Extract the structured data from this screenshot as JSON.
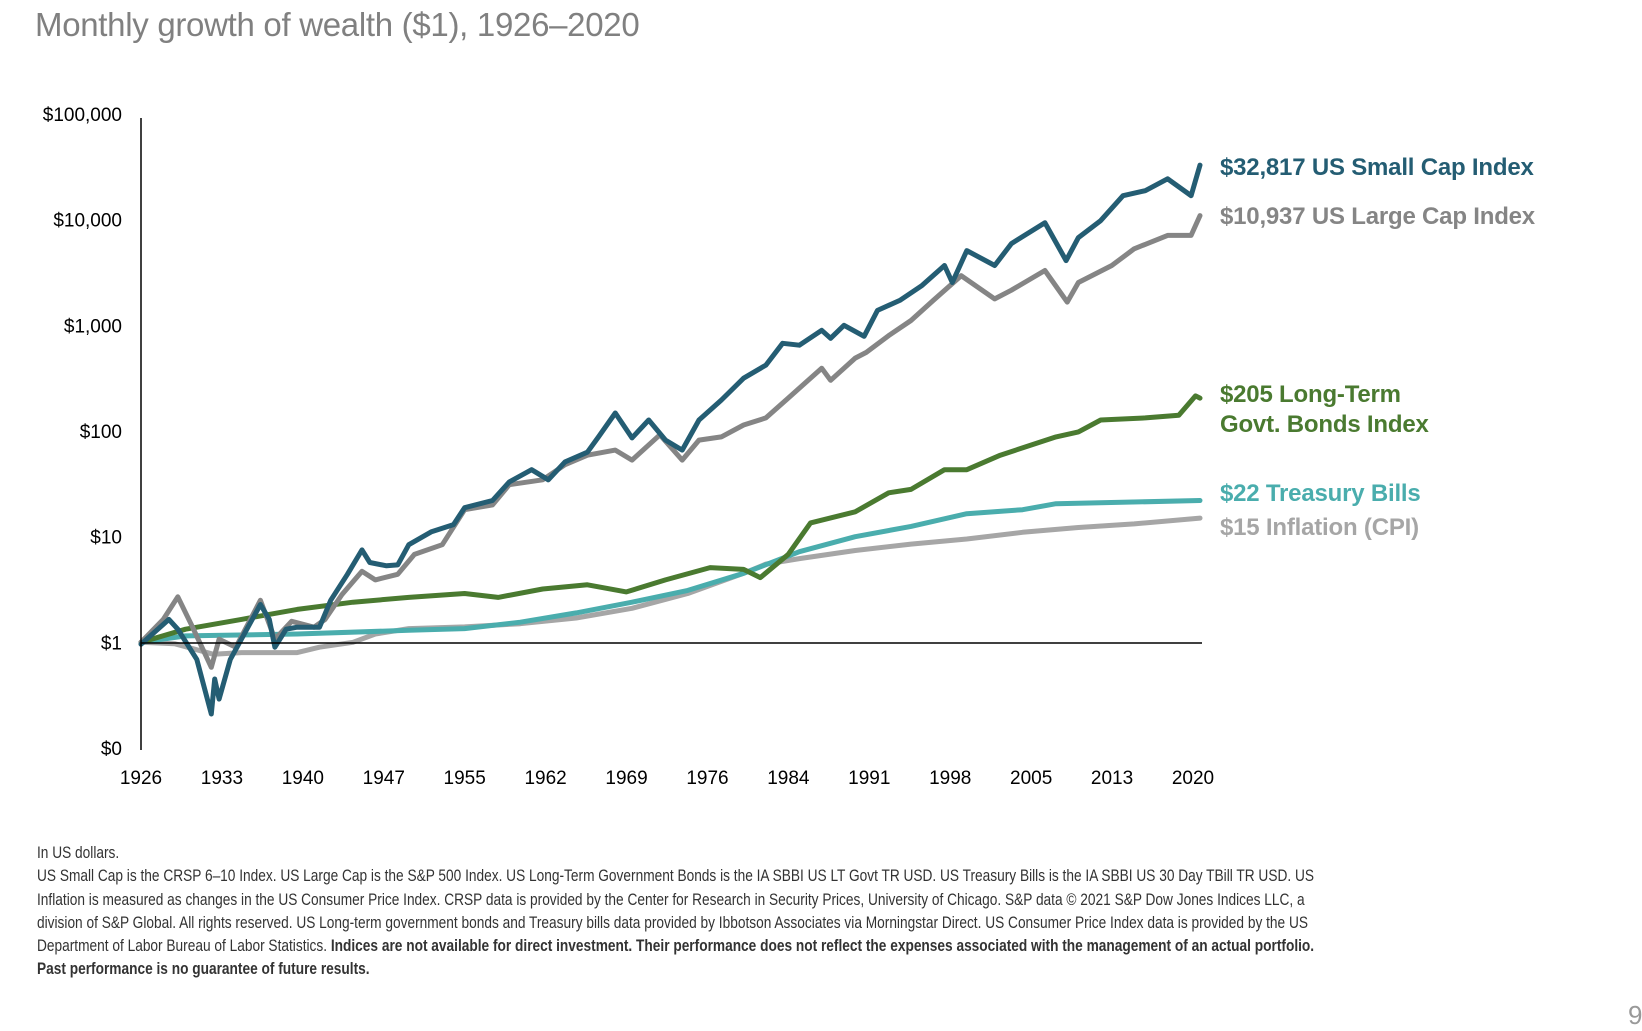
{
  "title": "Monthly growth of wealth ($1), 1926–2020",
  "chart_data": {
    "type": "line",
    "title": "Monthly growth of wealth ($1), 1926–2020",
    "xlabel": "",
    "ylabel": "",
    "y_scale": "log",
    "ylim": [
      0.1,
      100000
    ],
    "xlim": [
      1926,
      2020.9
    ],
    "y_ticks": [
      {
        "value": 0.1,
        "label": "$0"
      },
      {
        "value": 1,
        "label": "$1"
      },
      {
        "value": 10,
        "label": "$10"
      },
      {
        "value": 100,
        "label": "$100"
      },
      {
        "value": 1000,
        "label": "$1,000"
      },
      {
        "value": 10000,
        "label": "$10,000"
      },
      {
        "value": 100000,
        "label": "$100,000"
      }
    ],
    "x_ticks": [
      "1926",
      "1933",
      "1940",
      "1947",
      "1955",
      "1962",
      "1969",
      "1976",
      "1984",
      "1991",
      "1998",
      "2005",
      "2013",
      "2020"
    ],
    "reference_line": 1,
    "grid": false,
    "legend": "end-labels-right",
    "series": [
      {
        "name": "US Small Cap Index",
        "end_label": "$32,817 US Small Cap Index",
        "color": "#245d73",
        "x": [
          1926,
          1928.5,
          1929.3,
          1931,
          1932.3,
          1932.6,
          1933,
          1934,
          1936.7,
          1937.5,
          1938,
          1939,
          1940,
          1942,
          1943,
          1944.5,
          1945.8,
          1946.5,
          1948,
          1949,
          1950,
          1952,
          1954,
          1955,
          1957.5,
          1959,
          1961,
          1962.5,
          1964,
          1966,
          1967,
          1968.5,
          1970,
          1971.5,
          1973,
          1974.5,
          1976,
          1978,
          1980,
          1982,
          1983.5,
          1985,
          1987,
          1987.8,
          1989,
          1990.8,
          1992,
          1994,
          1996,
          1998,
          1998.7,
          2000,
          2002.5,
          2004,
          2007,
          2008.9,
          2010,
          2012,
          2014,
          2016,
          2018,
          2020.1,
          2020.9
        ],
        "y": [
          0.96,
          1.65,
          1.33,
          0.69,
          0.21,
          0.45,
          0.29,
          0.69,
          2.28,
          1.65,
          0.9,
          1.33,
          1.39,
          1.39,
          2.5,
          4.4,
          7.5,
          5.7,
          5.3,
          5.4,
          8.4,
          11.1,
          13,
          18.8,
          22,
          33,
          43,
          34.5,
          51,
          63,
          88,
          148,
          86,
          127,
          82,
          66,
          127,
          196,
          316,
          420,
          676,
          648,
          897,
          754,
          1000,
          788,
          1386,
          1722,
          2385,
          3680,
          2545,
          5100,
          3680,
          5940,
          9370,
          4100,
          6760,
          9790,
          16840,
          18790,
          24360,
          16840,
          32817
        ]
      },
      {
        "name": "US Large Cap Index",
        "end_label": "$10,937 US Large Cap Index",
        "color": "#858585",
        "x": [
          1926,
          1928,
          1929.3,
          1930.5,
          1932.3,
          1933,
          1934.5,
          1936.7,
          1938,
          1939.5,
          1941.5,
          1942.5,
          1944,
          1945.8,
          1947,
          1949,
          1950.5,
          1953,
          1955,
          1957.5,
          1959,
          1962,
          1964,
          1966,
          1968.5,
          1970,
          1972.5,
          1974.5,
          1976,
          1978,
          1980,
          1982,
          1984,
          1987,
          1987.8,
          1990,
          1991,
          1993,
          1995,
          1997,
          1999.5,
          2002.5,
          2004,
          2007,
          2009,
          2010,
          2013,
          2015,
          2018,
          2020.1,
          2020.9
        ],
        "y": [
          1,
          1.65,
          2.7,
          1.48,
          0.58,
          1.07,
          0.9,
          2.5,
          1.07,
          1.58,
          1.39,
          1.65,
          2.83,
          4.7,
          3.9,
          4.4,
          6.8,
          8.4,
          18,
          20,
          31,
          34.5,
          48,
          59,
          66,
          53,
          92,
          53,
          82,
          88,
          114,
          133,
          205,
          393,
          302,
          490,
          555,
          800,
          1110,
          1722,
          2950,
          1780,
          2150,
          3300,
          1660,
          2545,
          3680,
          5300,
          7100,
          7100,
          10937
        ]
      },
      {
        "name": "Long-Term Govt. Bonds Index",
        "end_label": [
          "$205 Long-Term",
          "Govt. Bonds Index"
        ],
        "color": "#4a7a30",
        "x": [
          1926,
          1930,
          1935,
          1940,
          1945,
          1950,
          1955,
          1958,
          1962,
          1966,
          1969.5,
          1973,
          1977,
          1980,
          1981.5,
          1984,
          1986,
          1990,
          1993,
          1995,
          1998,
          2000,
          2003,
          2008,
          2010,
          2012,
          2016,
          2019,
          2020.5,
          2020.9
        ],
        "y": [
          1,
          1.33,
          1.65,
          2.05,
          2.4,
          2.66,
          2.9,
          2.66,
          3.2,
          3.5,
          3.0,
          3.9,
          5.1,
          4.9,
          4.1,
          6.8,
          13.5,
          17.2,
          26,
          28,
          43,
          43,
          59,
          88,
          98,
          127,
          133,
          141,
          215,
          205
        ]
      },
      {
        "name": "Treasury Bills",
        "end_label": "$22 Treasury Bills",
        "color": "#4aadad",
        "x": [
          1926,
          1930,
          1940,
          1950,
          1955,
          1960,
          1965,
          1970,
          1975,
          1980,
          1985,
          1990,
          1995,
          2000,
          2005,
          2008,
          2010,
          2020.9
        ],
        "y": [
          1,
          1.15,
          1.2,
          1.3,
          1.35,
          1.55,
          1.9,
          2.4,
          3.1,
          4.5,
          7.2,
          10,
          12.5,
          16.5,
          18,
          20.5,
          20.7,
          22
        ]
      },
      {
        "name": "Inflation (CPI)",
        "end_label": "$15 Inflation (CPI)",
        "color": "#a6a6a6",
        "x": [
          1926,
          1929,
          1932.5,
          1935,
          1940,
          1942,
          1945,
          1947,
          1950,
          1955,
          1960,
          1965,
          1970,
          1975,
          1980,
          1982,
          1985,
          1990,
          1995,
          2000,
          2005,
          2010,
          2015,
          2020.9
        ],
        "y": [
          1,
          0.97,
          0.77,
          0.8,
          0.8,
          0.9,
          1.0,
          1.2,
          1.35,
          1.4,
          1.5,
          1.7,
          2.1,
          2.9,
          4.5,
          5.5,
          6.2,
          7.4,
          8.5,
          9.5,
          11,
          12.2,
          13.2,
          15
        ]
      }
    ]
  },
  "footnote": [
    [
      {
        "text": "In US dollars.",
        "bold": false
      }
    ],
    [
      {
        "text": "US Small Cap is the CRSP 6–10 Index. US Large Cap is the S&P 500 Index. US Long-Term Government Bonds is the IA SBBI US LT Govt TR USD. US Treasury Bills is the IA SBBI US 30 Day TBill TR USD. US",
        "bold": false
      }
    ],
    [
      {
        "text": "Inflation is measured as changes in the US Consumer Price Index. CRSP data is provided by the Center for Research in Security Prices, University of Chicago. S&P data © 2021 S&P Dow Jones Indices LLC, a",
        "bold": false
      }
    ],
    [
      {
        "text": "division of S&P Global. All rights reserved. US Long-term government bonds and Treasury bills data provided by Ibbotson Associates via Morningstar Direct. US Consumer Price Index data is provided by the US",
        "bold": false
      }
    ],
    [
      {
        "text": "Department of Labor Bureau of Labor Statistics. ",
        "bold": false
      },
      {
        "text": "Indices are not available for direct investment. Their performance does not reflect the expenses associated with the management of an actual portfolio.",
        "bold": true
      }
    ],
    [
      {
        "text": "Past performance is no guarantee of future results.",
        "bold": true
      }
    ]
  ],
  "page_number": "9"
}
